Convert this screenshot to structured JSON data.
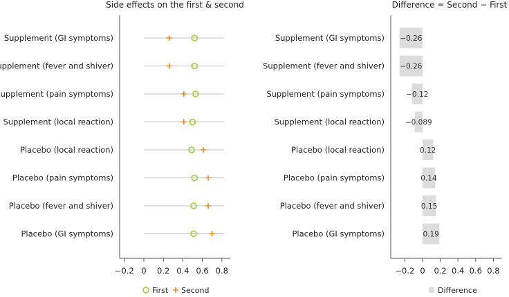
{
  "chart_data": [
    {
      "type": "dot",
      "title": "Side effects on the first & second",
      "categories": [
        "Supplement (GI symptoms)",
        "Supplement (fever and shiver)",
        "Supplement (pain symptoms)",
        "Supplement (local reaction)",
        "Placebo (local reaction)",
        "Placebo (pain symptoms)",
        "Placebo (fever and shiver)",
        "Placebo (GI symptoms)"
      ],
      "series": [
        {
          "name": "First",
          "marker": "open-circle",
          "color": "#9acd32",
          "values": [
            0.52,
            0.52,
            0.53,
            0.5,
            0.49,
            0.52,
            0.51,
            0.51
          ]
        },
        {
          "name": "Second",
          "marker": "plus",
          "color": "#f08a24",
          "values": [
            0.26,
            0.26,
            0.41,
            0.41,
            0.61,
            0.66,
            0.66,
            0.7
          ]
        }
      ],
      "xlim": [
        -0.3,
        0.9
      ],
      "xticks": [
        "−0.2",
        "0",
        "0.2",
        "0.4",
        "0.6",
        "0.8"
      ],
      "xtick_values": [
        -0.2,
        0,
        0.2,
        0.4,
        0.6,
        0.8
      ],
      "range_line": [
        0,
        0.82
      ],
      "legend_position": "bottom"
    },
    {
      "type": "bar",
      "orientation": "horizontal",
      "title": "Difference = Second − First",
      "categories": [
        "Supplement (GI symptoms)",
        "Supplement (fever and shiver)",
        "Supplement (pain symptoms)",
        "Supplement (local reaction)",
        "Placebo (local reaction)",
        "Placebo (pain symptoms)",
        "Placebo (fever and shiver)",
        "Placebo (GI symptoms)"
      ],
      "series": [
        {
          "name": "Difference",
          "color": "#dcdcdc",
          "values": [
            -0.26,
            -0.26,
            -0.12,
            -0.089,
            0.12,
            0.14,
            0.15,
            0.19
          ],
          "labels": [
            "−0.26",
            "−0.26",
            "−0.12",
            "−0.089",
            "0.12",
            "0.14",
            "0.15",
            "0.19"
          ]
        }
      ],
      "xlim": [
        -0.3,
        0.9
      ],
      "xticks": [
        "−0.2",
        "0",
        "0.2",
        "0.4",
        "0.6",
        "0.8"
      ],
      "xtick_values": [
        -0.2,
        0,
        0.2,
        0.4,
        0.6,
        0.8
      ],
      "legend_position": "bottom"
    }
  ]
}
